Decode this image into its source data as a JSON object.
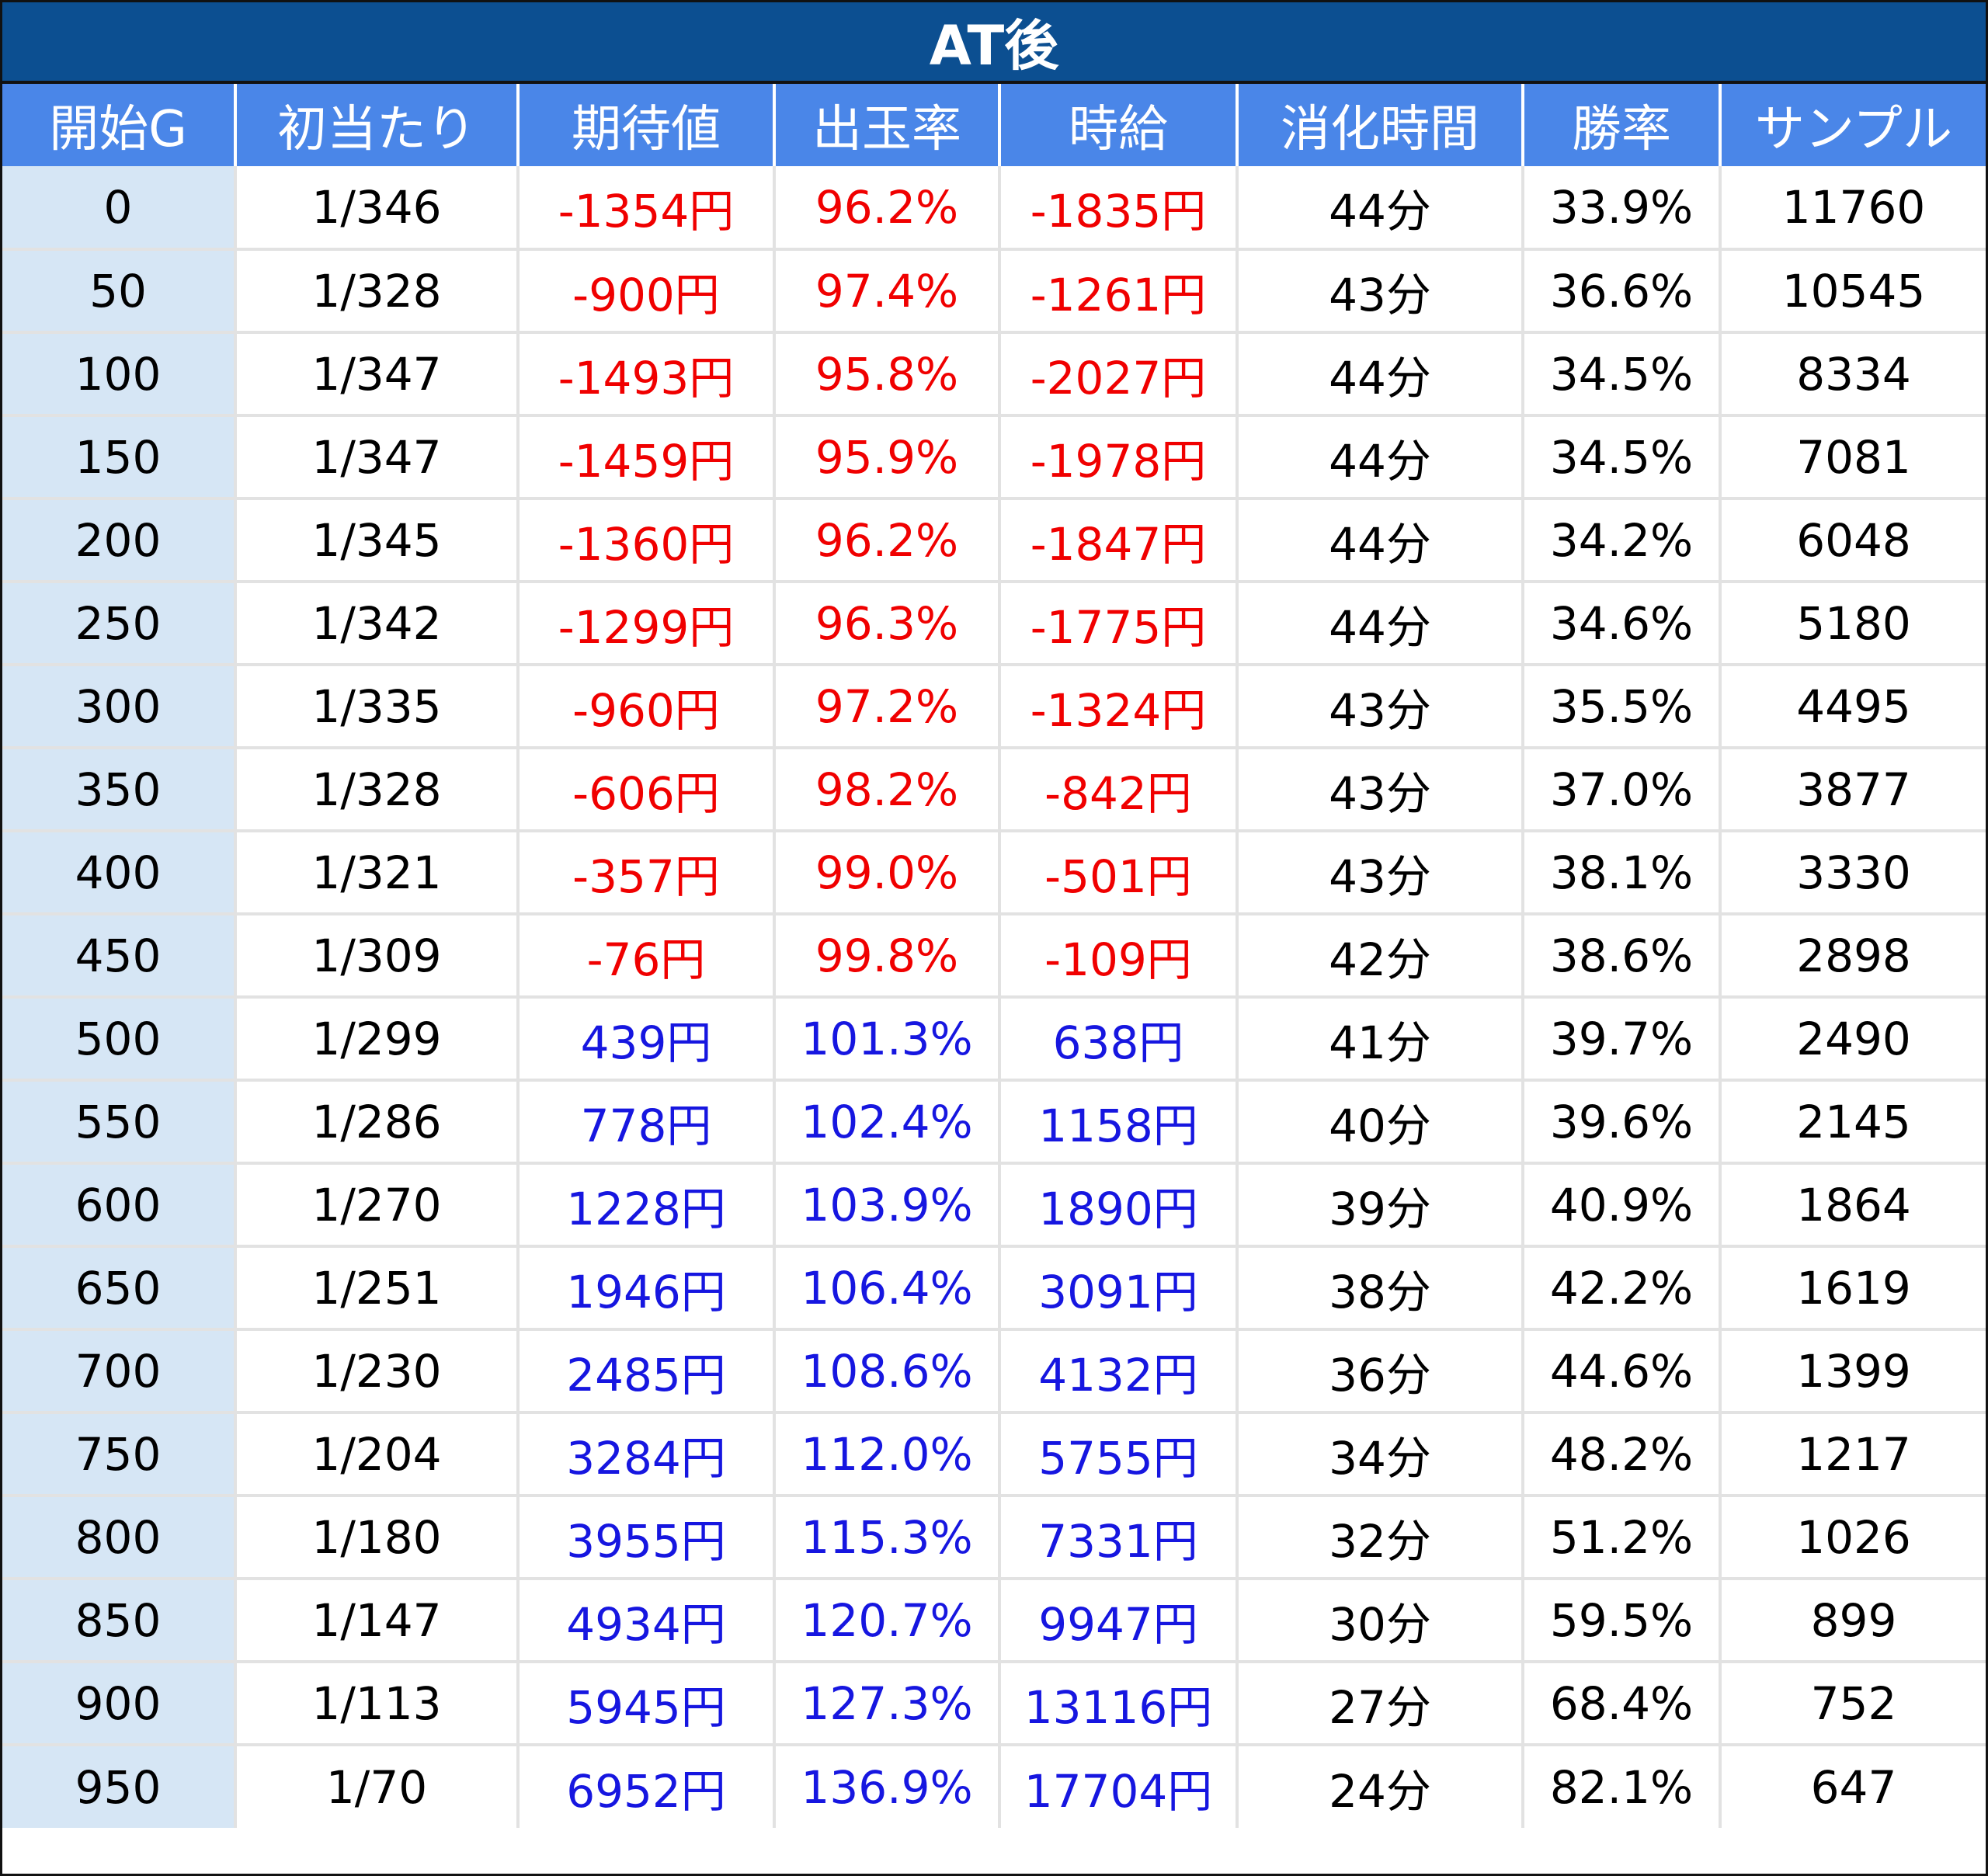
{
  "title": "AT後",
  "colors": {
    "title_bg": "#0c4f91",
    "header_bg": "#4a86e8",
    "first_col_bg": "#d6e6f5",
    "negative": "#f00000",
    "positive": "#1616e0"
  },
  "columns": [
    "開始G",
    "初当たり",
    "期待値",
    "出玉率",
    "時給",
    "消化時間",
    "勝率",
    "サンプル"
  ],
  "rows": [
    [
      "0",
      "1/346",
      "-1354円",
      "96.2%",
      "-1835円",
      "44分",
      "33.9%",
      "11760"
    ],
    [
      "50",
      "1/328",
      "-900円",
      "97.4%",
      "-1261円",
      "43分",
      "36.6%",
      "10545"
    ],
    [
      "100",
      "1/347",
      "-1493円",
      "95.8%",
      "-2027円",
      "44分",
      "34.5%",
      "8334"
    ],
    [
      "150",
      "1/347",
      "-1459円",
      "95.9%",
      "-1978円",
      "44分",
      "34.5%",
      "7081"
    ],
    [
      "200",
      "1/345",
      "-1360円",
      "96.2%",
      "-1847円",
      "44分",
      "34.2%",
      "6048"
    ],
    [
      "250",
      "1/342",
      "-1299円",
      "96.3%",
      "-1775円",
      "44分",
      "34.6%",
      "5180"
    ],
    [
      "300",
      "1/335",
      "-960円",
      "97.2%",
      "-1324円",
      "43分",
      "35.5%",
      "4495"
    ],
    [
      "350",
      "1/328",
      "-606円",
      "98.2%",
      "-842円",
      "43分",
      "37.0%",
      "3877"
    ],
    [
      "400",
      "1/321",
      "-357円",
      "99.0%",
      "-501円",
      "43分",
      "38.1%",
      "3330"
    ],
    [
      "450",
      "1/309",
      "-76円",
      "99.8%",
      "-109円",
      "42分",
      "38.6%",
      "2898"
    ],
    [
      "500",
      "1/299",
      "439円",
      "101.3%",
      "638円",
      "41分",
      "39.7%",
      "2490"
    ],
    [
      "550",
      "1/286",
      "778円",
      "102.4%",
      "1158円",
      "40分",
      "39.6%",
      "2145"
    ],
    [
      "600",
      "1/270",
      "1228円",
      "103.9%",
      "1890円",
      "39分",
      "40.9%",
      "1864"
    ],
    [
      "650",
      "1/251",
      "1946円",
      "106.4%",
      "3091円",
      "38分",
      "42.2%",
      "1619"
    ],
    [
      "700",
      "1/230",
      "2485円",
      "108.6%",
      "4132円",
      "36分",
      "44.6%",
      "1399"
    ],
    [
      "750",
      "1/204",
      "3284円",
      "112.0%",
      "5755円",
      "34分",
      "48.2%",
      "1217"
    ],
    [
      "800",
      "1/180",
      "3955円",
      "115.3%",
      "7331円",
      "32分",
      "51.2%",
      "1026"
    ],
    [
      "850",
      "1/147",
      "4934円",
      "120.7%",
      "9947円",
      "30分",
      "59.5%",
      "899"
    ],
    [
      "900",
      "1/113",
      "5945円",
      "127.3%",
      "13116円",
      "27分",
      "68.4%",
      "752"
    ],
    [
      "950",
      "1/70",
      "6952円",
      "136.9%",
      "17704円",
      "24分",
      "82.1%",
      "647"
    ]
  ]
}
